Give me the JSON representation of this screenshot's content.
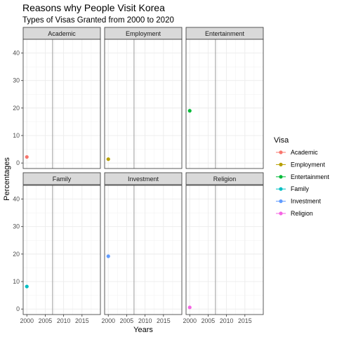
{
  "chart_data": {
    "type": "scatter",
    "title": "Reasons why People Visit Korea",
    "subtitle": "Types of Visas Granted from 2000 to 2020",
    "xlabel": "Years",
    "ylabel": "Percentages",
    "xlim": [
      1999,
      2020
    ],
    "ylim": [
      -2,
      45
    ],
    "xticks": [
      2000,
      2005,
      2010,
      2015
    ],
    "yticks": [
      0,
      10,
      20,
      30,
      40
    ],
    "vline": 2007,
    "grid": true,
    "facet_layout": {
      "rows": 2,
      "cols": 3
    },
    "legend": {
      "title": "Visa",
      "position": "right"
    },
    "series": [
      {
        "name": "Academic",
        "color": "#F8766D",
        "points": [
          {
            "x": 2000,
            "y": 2.2
          }
        ]
      },
      {
        "name": "Employment",
        "color": "#B79F00",
        "points": [
          {
            "x": 2000,
            "y": 1.4
          }
        ]
      },
      {
        "name": "Entertainment",
        "color": "#00BA38",
        "points": [
          {
            "x": 2000,
            "y": 19.0
          }
        ]
      },
      {
        "name": "Family",
        "color": "#00BFC4",
        "points": [
          {
            "x": 2000,
            "y": 8.2
          }
        ]
      },
      {
        "name": "Investment",
        "color": "#619CFF",
        "points": [
          {
            "x": 2000,
            "y": 19.2
          }
        ]
      },
      {
        "name": "Religion",
        "color": "#F564E3",
        "points": [
          {
            "x": 2000,
            "y": 0.6
          }
        ]
      }
    ]
  }
}
